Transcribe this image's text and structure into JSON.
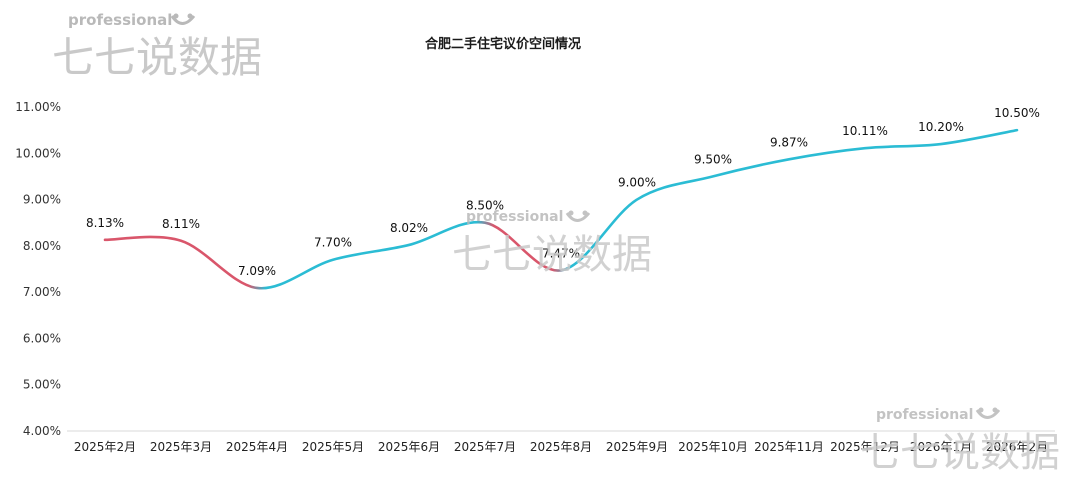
{
  "watermark": {
    "professional": "professional",
    "brand": "七七说数据"
  },
  "chart_data": {
    "type": "line",
    "title": "合肥二手住宅议价空间情况",
    "xlabel": "",
    "ylabel": "",
    "categories": [
      "2025年2月",
      "2025年3月",
      "2025年4月",
      "2025年5月",
      "2025年6月",
      "2025年7月",
      "2025年8月",
      "2025年9月",
      "2025年10月",
      "2025年11月",
      "2025年12月",
      "2026年1月",
      "2026年2月"
    ],
    "series": [
      {
        "values": [
          8.13,
          8.11,
          7.09,
          7.7,
          8.02,
          8.5,
          7.47,
          9.0,
          9.5,
          9.87,
          10.11,
          10.2,
          10.5
        ],
        "labels": [
          "8.13%",
          "8.11%",
          "7.09%",
          "7.70%",
          "8.02%",
          "8.50%",
          "7.47%",
          "9.00%",
          "9.50%",
          "9.87%",
          "10.11%",
          "10.20%",
          "10.50%"
        ]
      }
    ],
    "ylim": [
      4,
      11
    ],
    "yticks": [
      4,
      5,
      6,
      7,
      8,
      9,
      10,
      11
    ],
    "ytick_labels": [
      "4.00%",
      "5.00%",
      "6.00%",
      "7.00%",
      "8.00%",
      "9.00%",
      "10.00%",
      "11.00%"
    ],
    "grid": false,
    "colors": {
      "rise": "#2bbcd4",
      "fall": "#d9566b"
    }
  }
}
